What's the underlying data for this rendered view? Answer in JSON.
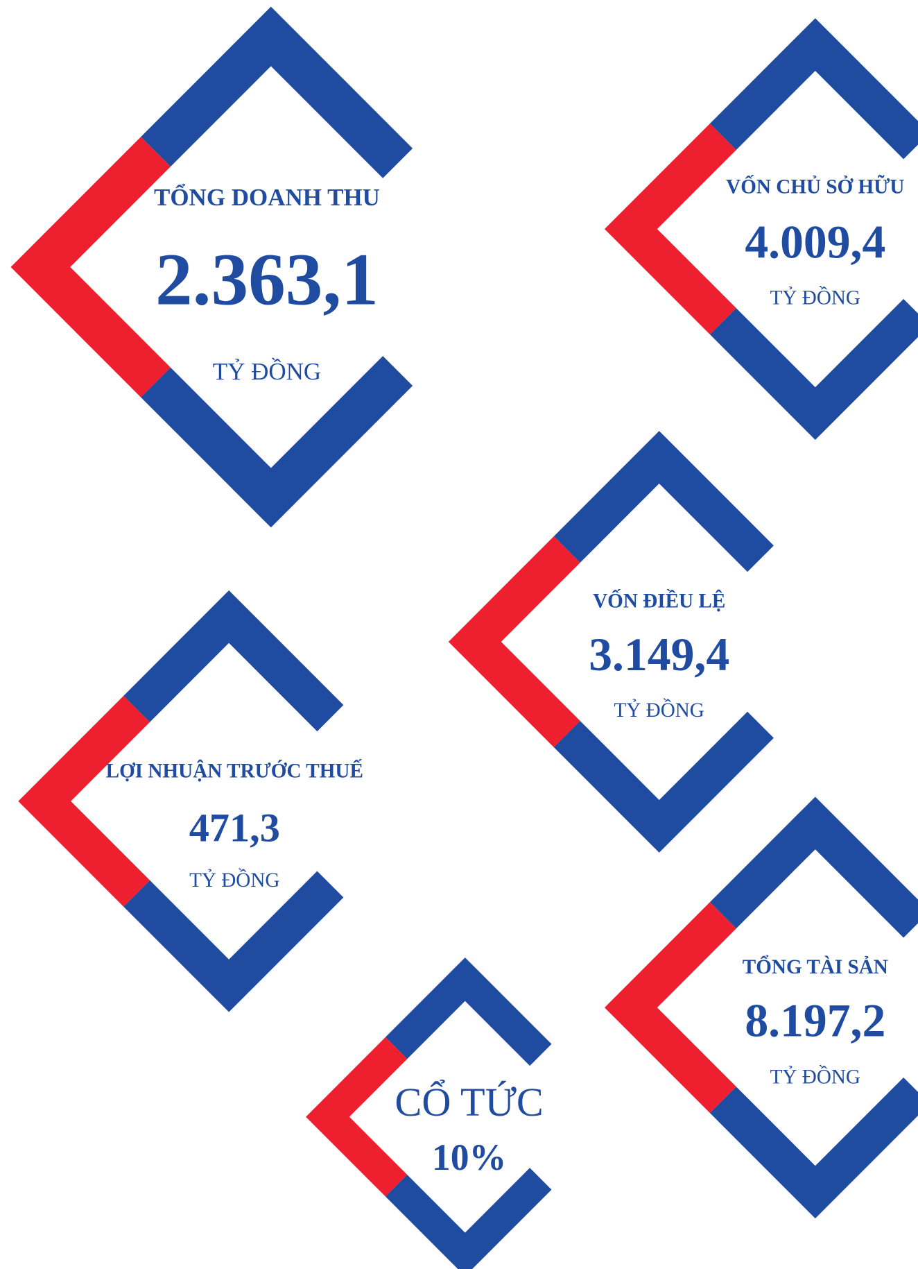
{
  "items": [
    {
      "title": "TỔNG DOANH THU",
      "value": "2.363,1",
      "unit": "TỶ ĐỒNG"
    },
    {
      "title": "VỐN CHỦ SỞ HỮU",
      "value": "4.009,4",
      "unit": "TỶ ĐỒNG"
    },
    {
      "title": "VỐN ĐIỀU LỆ",
      "value": "3.149,4",
      "unit": "TỶ ĐỒNG"
    },
    {
      "title": "LỢI NHUẬN TRƯỚC THUẾ",
      "value": "471,3",
      "unit": "TỶ ĐỒNG"
    },
    {
      "title": "TỔNG TÀI SẢN",
      "value": "8.197,2",
      "unit": "TỶ ĐỒNG"
    },
    {
      "title": "CỔ TỨC",
      "value": "10%"
    }
  ]
}
